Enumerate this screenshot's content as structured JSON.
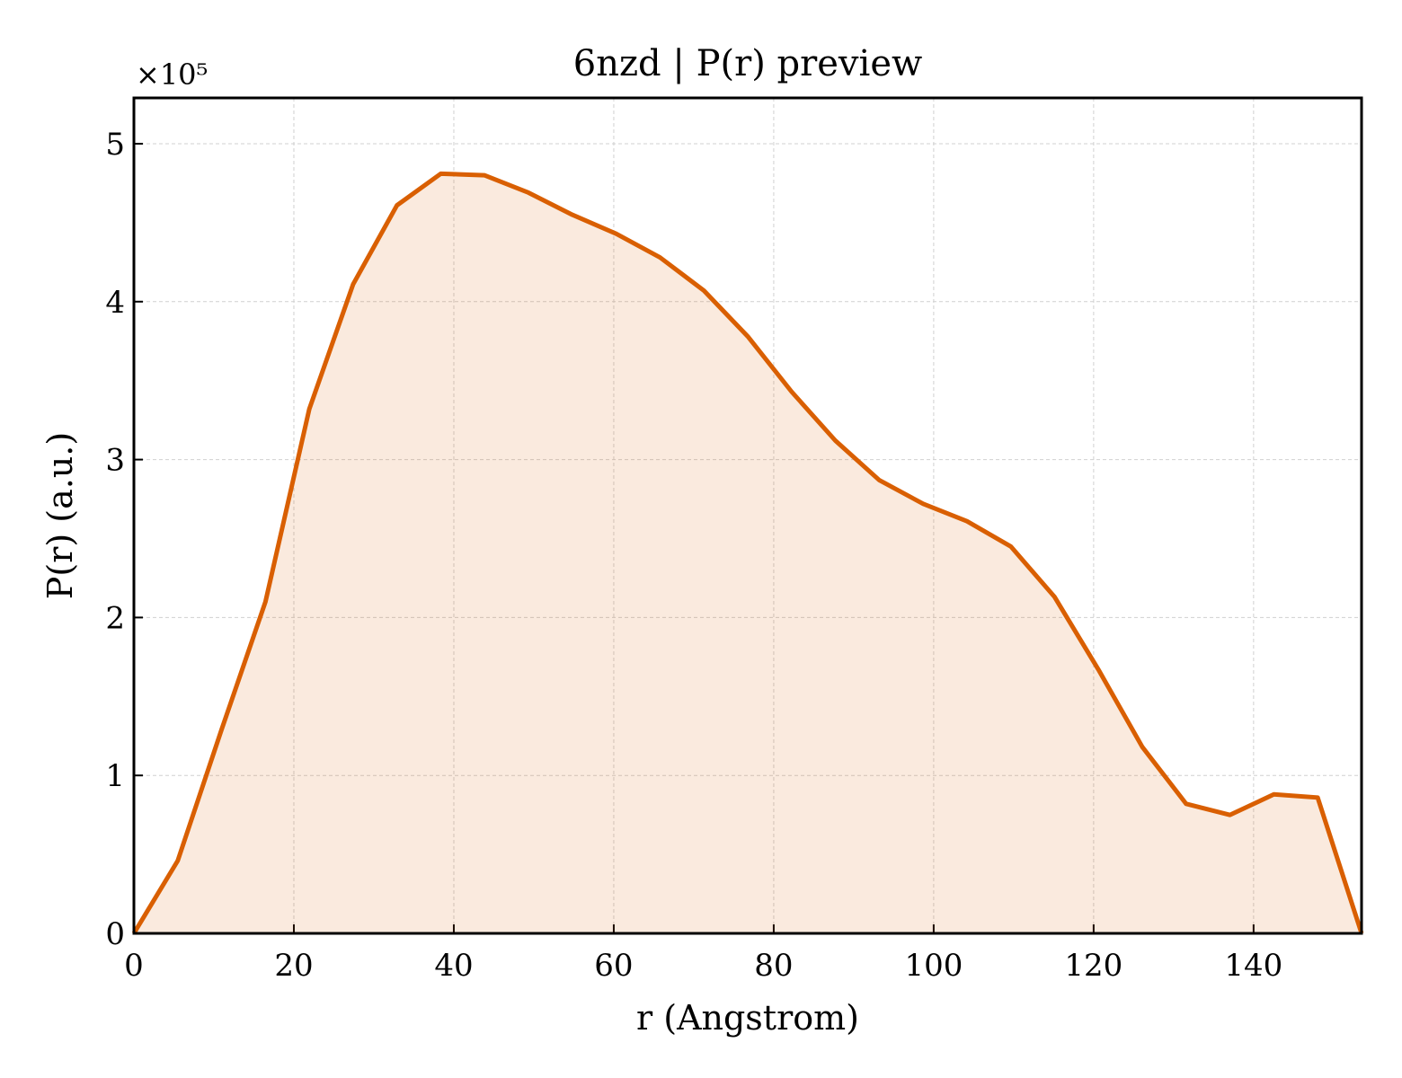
{
  "chart_data": {
    "type": "line",
    "title": "6nzd | P(r) preview",
    "x_label": "r (Angstrom)",
    "y_label": "P(r) (a.u.)",
    "y_offset_label": "×10⁵",
    "x": [
      0,
      5.48,
      10.96,
      16.45,
      21.93,
      27.41,
      32.89,
      38.37,
      43.86,
      49.34,
      54.82,
      60.3,
      65.78,
      71.27,
      76.75,
      82.23,
      87.71,
      93.19,
      98.68,
      104.16,
      109.64,
      115.12,
      120.6,
      126.09,
      131.57,
      137.05,
      142.53,
      148.01,
      153.5
    ],
    "values": [
      0,
      0.46,
      1.29,
      2.1,
      3.32,
      4.11,
      4.61,
      4.81,
      4.8,
      4.69,
      4.55,
      4.43,
      4.28,
      4.07,
      3.78,
      3.43,
      3.12,
      2.87,
      2.72,
      2.61,
      2.45,
      2.13,
      1.67,
      1.18,
      0.82,
      0.75,
      0.88,
      0.86,
      0
    ],
    "color": "#d95f02",
    "fill": true,
    "xlim": [
      0,
      153.5
    ],
    "ylim": [
      0,
      5.29
    ],
    "xticks": [
      0,
      20,
      40,
      60,
      80,
      100,
      120,
      140
    ],
    "yticks": [
      0,
      1,
      2,
      3,
      4,
      5
    ],
    "grid": true
  }
}
